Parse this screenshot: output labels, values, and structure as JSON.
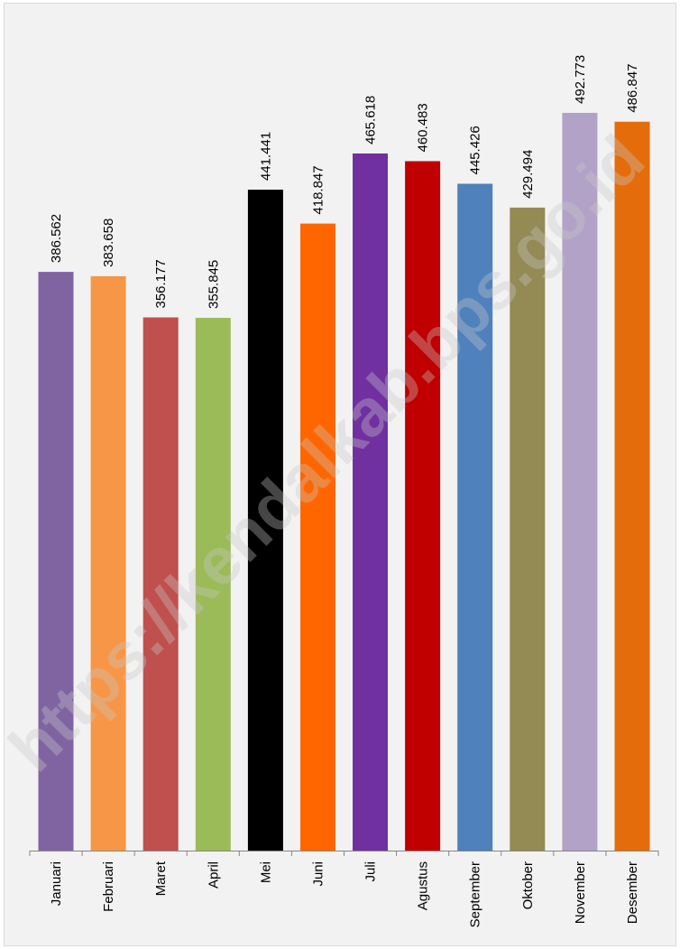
{
  "chart_data": {
    "type": "bar",
    "categories": [
      "Januari",
      "Februari",
      "Maret",
      "April",
      "Mei",
      "Juni",
      "Juli",
      "Agustus",
      "September",
      "Oktober",
      "November",
      "Desember"
    ],
    "values": [
      386562,
      383658,
      356177,
      355845,
      441441,
      418847,
      465618,
      460483,
      445426,
      429494,
      492773,
      486847
    ],
    "value_labels": [
      "386.562",
      "383.658",
      "356.177",
      "355.845",
      "441.441",
      "418.847",
      "465.618",
      "460.483",
      "445.426",
      "429.494",
      "492.773",
      "486.847"
    ],
    "colors": [
      "#8064a2",
      "#f79646",
      "#c0504d",
      "#9bbb59",
      "#000000",
      "#ff6600",
      "#7030a0",
      "#c00000",
      "#4f81bd",
      "#948a54",
      "#b2a2c7",
      "#e46c0a"
    ],
    "title": "",
    "xlabel": "",
    "ylabel": "",
    "ylim": [
      0,
      510000
    ],
    "grid": false,
    "legend": "none",
    "value_label_orientation": "vertical",
    "category_label_orientation": "vertical"
  },
  "watermark": "https://kendalkab.bps.go.id"
}
